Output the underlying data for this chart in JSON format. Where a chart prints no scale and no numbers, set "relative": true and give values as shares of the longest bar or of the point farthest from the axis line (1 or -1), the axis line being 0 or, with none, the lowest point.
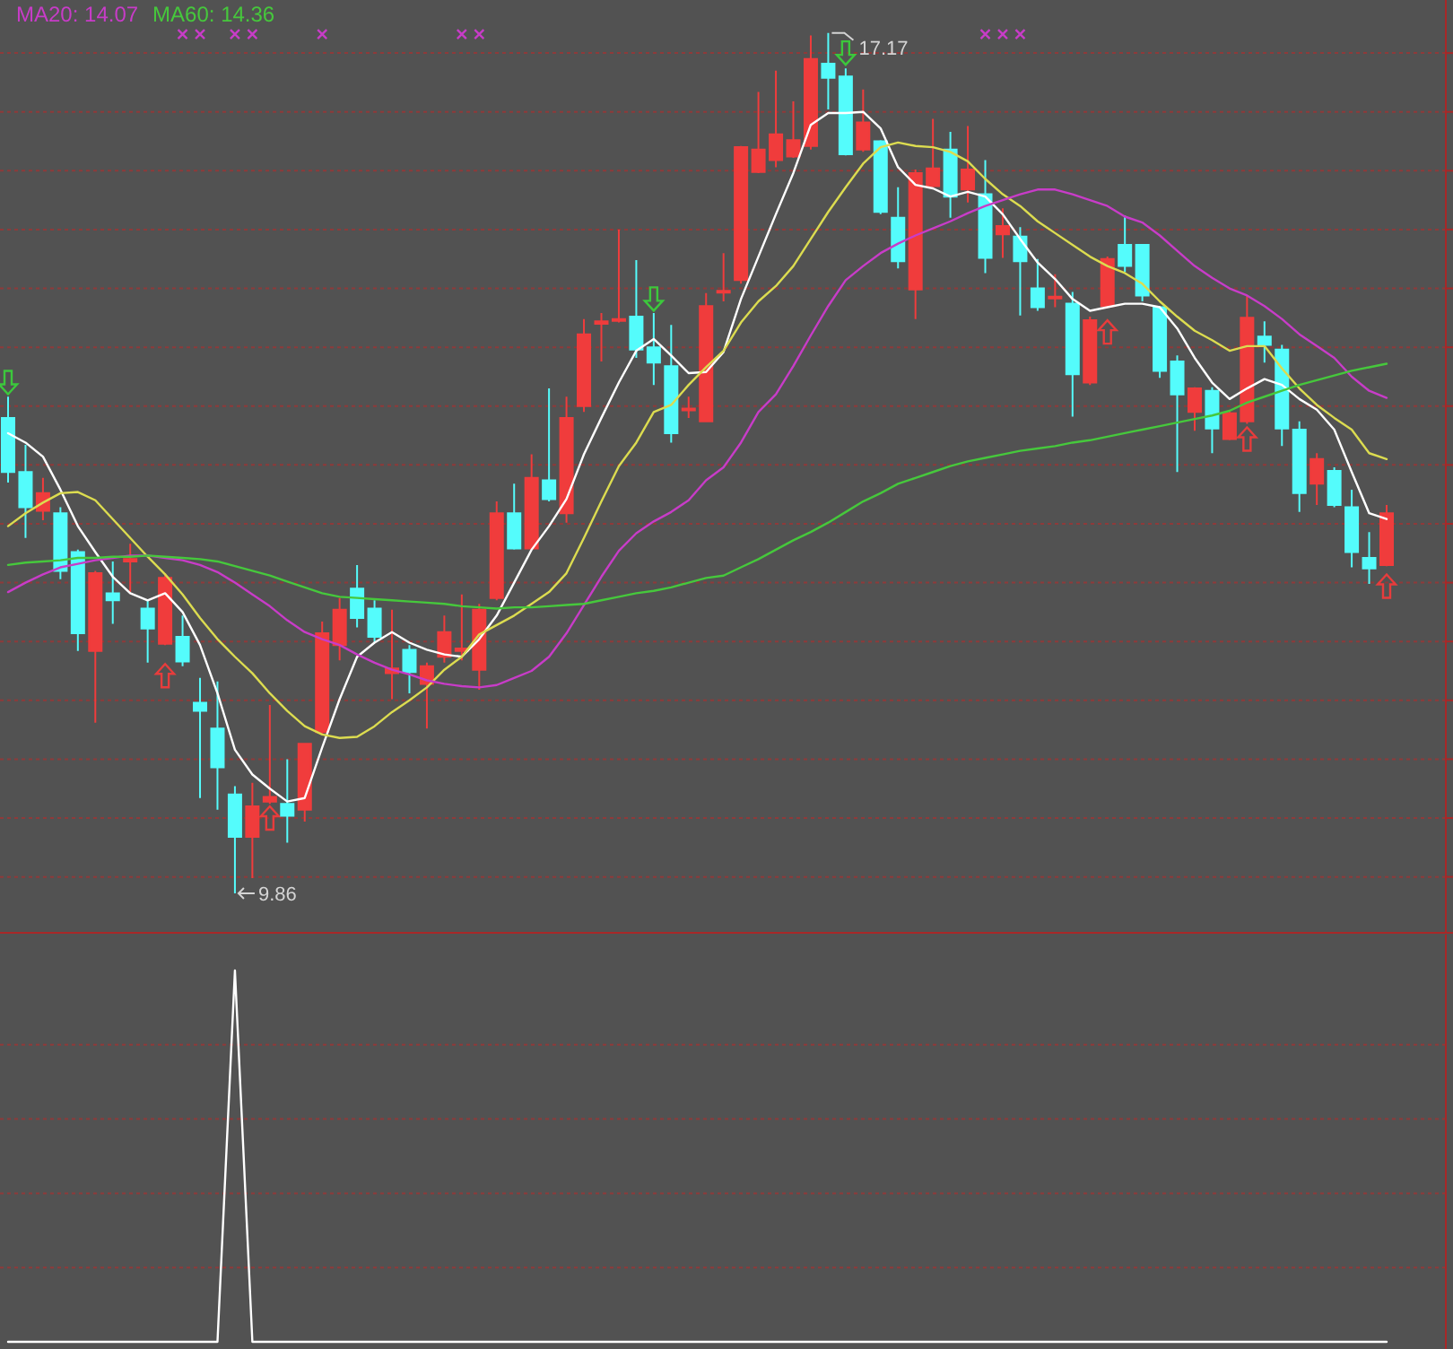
{
  "chart_data": [
    {
      "type": "candlestick",
      "categories": [
        null,
        null,
        null,
        null,
        null,
        null,
        null,
        null,
        null,
        null,
        null,
        null,
        null,
        null,
        null,
        null,
        null,
        null,
        null,
        null,
        null,
        null,
        null,
        null,
        null,
        null,
        null,
        null,
        null,
        null,
        null,
        null,
        null,
        null,
        null,
        null,
        null,
        null,
        null,
        null,
        null,
        null,
        null,
        null,
        null,
        null,
        null,
        null,
        null,
        null,
        null,
        null,
        null,
        null,
        null,
        null,
        null,
        null,
        null,
        null,
        null,
        null,
        null,
        null,
        null,
        null,
        null,
        null,
        null,
        null,
        null,
        null,
        null,
        null,
        null,
        null,
        null,
        null,
        null,
        null
      ],
      "ohlc": [
        [
          13.9,
          14.08,
          13.35,
          13.44
        ],
        [
          13.44,
          13.67,
          12.88,
          13.14
        ],
        [
          13.11,
          13.39,
          13.03,
          13.26
        ],
        [
          13.09,
          13.14,
          12.53,
          12.6
        ],
        [
          12.76,
          12.78,
          11.92,
          12.07
        ],
        [
          11.92,
          12.6,
          11.31,
          12.58
        ],
        [
          12.41,
          12.68,
          12.15,
          12.35
        ],
        [
          12.68,
          12.83,
          12.42,
          12.7
        ],
        [
          12.28,
          12.35,
          11.82,
          12.11
        ],
        [
          11.98,
          12.58,
          11.97,
          12.54
        ],
        [
          12.04,
          12.22,
          11.79,
          11.83
        ],
        [
          11.48,
          11.69,
          10.67,
          11.41
        ],
        [
          11.26,
          11.66,
          10.57,
          10.93
        ],
        [
          10.7,
          10.77,
          9.86,
          10.34
        ],
        [
          10.34,
          10.8,
          9.99,
          10.6
        ],
        [
          10.64,
          11.46,
          10.62,
          10.68
        ],
        [
          10.62,
          11.0,
          10.29,
          10.52
        ],
        [
          10.57,
          11.13,
          10.47,
          11.13
        ],
        [
          11.23,
          12.17,
          11.21,
          12.07
        ],
        [
          11.97,
          12.37,
          11.84,
          12.27
        ],
        [
          12.45,
          12.65,
          12.12,
          12.2
        ],
        [
          12.28,
          12.35,
          11.99,
          12.04
        ],
        [
          11.73,
          12.27,
          11.51,
          11.77
        ],
        [
          11.93,
          11.97,
          11.56,
          11.74
        ],
        [
          11.64,
          11.82,
          11.26,
          11.79
        ],
        [
          11.87,
          12.22,
          11.82,
          12.08
        ],
        [
          11.92,
          12.4,
          11.84,
          11.94
        ],
        [
          11.76,
          12.32,
          11.59,
          12.27
        ],
        [
          12.37,
          13.19,
          12.35,
          13.09
        ],
        [
          13.09,
          13.34,
          12.78,
          12.79
        ],
        [
          12.79,
          13.59,
          12.78,
          13.39
        ],
        [
          13.37,
          14.15,
          13.19,
          13.21
        ],
        [
          13.09,
          14.08,
          13.01,
          13.9
        ],
        [
          14.0,
          14.74,
          13.95,
          14.61
        ],
        [
          14.7,
          14.79,
          14.38,
          14.72
        ],
        [
          14.73,
          15.5,
          14.71,
          14.74
        ],
        [
          14.76,
          15.24,
          14.41,
          14.48
        ],
        [
          14.5,
          14.79,
          14.18,
          14.37
        ],
        [
          14.34,
          14.69,
          13.69,
          13.77
        ],
        [
          13.97,
          14.08,
          13.9,
          13.98
        ],
        [
          13.87,
          14.96,
          13.87,
          14.85
        ],
        [
          14.97,
          15.3,
          14.89,
          14.98
        ],
        [
          15.07,
          16.21,
          15.04,
          16.2
        ],
        [
          15.99,
          16.67,
          15.98,
          16.18
        ],
        [
          16.09,
          16.85,
          16.03,
          16.31
        ],
        [
          16.12,
          16.59,
          16.11,
          16.26
        ],
        [
          16.21,
          17.15,
          16.18,
          16.95
        ],
        [
          16.91,
          17.17,
          16.52,
          16.79
        ],
        [
          16.8,
          16.87,
          16.13,
          16.14
        ],
        [
          16.18,
          16.69,
          16.16,
          16.41
        ],
        [
          16.25,
          16.26,
          15.63,
          15.65
        ],
        [
          15.6,
          15.86,
          15.17,
          15.23
        ],
        [
          14.99,
          16.01,
          14.74,
          15.98
        ],
        [
          15.87,
          16.44,
          15.86,
          16.02
        ],
        [
          16.18,
          16.33,
          15.6,
          15.78
        ],
        [
          15.84,
          16.38,
          15.73,
          16.01
        ],
        [
          15.8,
          16.09,
          15.13,
          15.26
        ],
        [
          15.46,
          15.68,
          15.26,
          15.53
        ],
        [
          15.44,
          15.52,
          14.77,
          15.23
        ],
        [
          15.0,
          15.25,
          14.81,
          14.84
        ],
        [
          14.92,
          15.12,
          14.84,
          14.93
        ],
        [
          14.87,
          14.97,
          13.91,
          14.27
        ],
        [
          14.2,
          14.76,
          14.18,
          14.73
        ],
        [
          14.85,
          15.27,
          14.84,
          15.25
        ],
        [
          15.37,
          15.62,
          15.14,
          15.19
        ],
        [
          15.37,
          15.37,
          14.89,
          14.94
        ],
        [
          14.84,
          14.85,
          14.24,
          14.3
        ],
        [
          14.38,
          14.43,
          13.44,
          14.1
        ],
        [
          13.95,
          14.16,
          13.79,
          14.15
        ],
        [
          14.13,
          14.16,
          13.6,
          13.81
        ],
        [
          13.72,
          13.96,
          13.71,
          13.94
        ],
        [
          13.87,
          14.94,
          13.85,
          14.75
        ],
        [
          14.59,
          14.72,
          14.37,
          14.52
        ],
        [
          14.48,
          14.52,
          13.66,
          13.81
        ],
        [
          13.8,
          13.87,
          13.1,
          13.26
        ],
        [
          13.34,
          13.6,
          13.16,
          13.55
        ],
        [
          13.45,
          13.48,
          13.14,
          13.16
        ],
        [
          13.14,
          13.29,
          12.63,
          12.76
        ],
        [
          12.71,
          12.93,
          12.49,
          12.62
        ],
        [
          12.65,
          13.16,
          12.64,
          13.09
        ]
      ],
      "colors": [
        "#54fcfc",
        "#54fcfc",
        "#f03c3c",
        "#54fcfc",
        "#54fcfc",
        "#f03c3c",
        "#54fcfc",
        "#f03c3c",
        "#54fcfc",
        "#f03c3c",
        "#54fcfc",
        "#54fcfc",
        "#54fcfc",
        "#54fcfc",
        "#f03c3c",
        "#f03c3c",
        "#54fcfc",
        "#f03c3c",
        "#f03c3c",
        "#f03c3c",
        "#54fcfc",
        "#54fcfc",
        "#f03c3c",
        "#54fcfc",
        "#f03c3c",
        "#f03c3c",
        "#f03c3c",
        "#f03c3c",
        "#f03c3c",
        "#54fcfc",
        "#f03c3c",
        "#54fcfc",
        "#f03c3c",
        "#f03c3c",
        "#f03c3c",
        "#f03c3c",
        "#54fcfc",
        "#54fcfc",
        "#54fcfc",
        "#f03c3c",
        "#f03c3c",
        "#f03c3c",
        "#f03c3c",
        "#f03c3c",
        "#f03c3c",
        "#f03c3c",
        "#f03c3c",
        "#54fcfc",
        "#54fcfc",
        "#f03c3c",
        "#54fcfc",
        "#54fcfc",
        "#f03c3c",
        "#f03c3c",
        "#54fcfc",
        "#f03c3c",
        "#54fcfc",
        "#f03c3c",
        "#54fcfc",
        "#54fcfc",
        "#f03c3c",
        "#54fcfc",
        "#f03c3c",
        "#f03c3c",
        "#54fcfc",
        "#54fcfc",
        "#54fcfc",
        "#54fcfc",
        "#f03c3c",
        "#54fcfc",
        "#f03c3c",
        "#f03c3c",
        "#54fcfc",
        "#54fcfc",
        "#54fcfc",
        "#f03c3c",
        "#54fcfc",
        "#54fcfc",
        "#54fcfc",
        "#f03c3c"
      ],
      "series": [
        {
          "type": "line",
          "color": "#ffffff",
          "values": [
            13.77,
            13.69,
            13.57,
            13.29,
            12.98,
            12.76,
            12.55,
            12.41,
            12.35,
            12.41,
            12.25,
            11.97,
            11.56,
            11.08,
            10.87,
            10.75,
            10.64,
            10.67,
            11.1,
            11.51,
            11.87,
            11.99,
            12.08,
            11.99,
            11.93,
            11.89,
            11.87,
            12.02,
            12.22,
            12.5,
            12.78,
            12.98,
            13.21,
            13.59,
            13.9,
            14.2,
            14.47,
            14.57,
            14.43,
            14.28,
            14.29,
            14.46,
            14.91,
            15.27,
            15.63,
            15.98,
            16.39,
            16.49,
            16.49,
            16.5,
            16.36,
            16.03,
            15.88,
            15.85,
            15.78,
            15.82,
            15.78,
            15.63,
            15.42,
            15.22,
            15.08,
            14.91,
            14.81,
            14.84,
            14.87,
            14.87,
            14.84,
            14.66,
            14.41,
            14.2,
            14.06,
            14.15,
            14.23,
            14.18,
            14.06,
            13.97,
            13.8,
            13.44,
            13.09,
            13.04
          ]
        },
        {
          "type": "line",
          "color": "#dcdc50",
          "values": [
            12.98,
            13.09,
            13.18,
            13.26,
            13.27,
            13.2,
            13.04,
            12.88,
            12.72,
            12.57,
            12.4,
            12.2,
            12.02,
            11.87,
            11.73,
            11.56,
            11.41,
            11.28,
            11.21,
            11.18,
            11.19,
            11.28,
            11.4,
            11.5,
            11.61,
            11.76,
            11.87,
            12.06,
            12.14,
            12.22,
            12.32,
            12.42,
            12.58,
            12.88,
            13.19,
            13.49,
            13.69,
            13.95,
            14.01,
            14.18,
            14.33,
            14.47,
            14.71,
            14.89,
            15.02,
            15.19,
            15.42,
            15.65,
            15.86,
            16.06,
            16.2,
            16.24,
            16.21,
            16.2,
            16.16,
            16.08,
            15.93,
            15.8,
            15.7,
            15.57,
            15.47,
            15.37,
            15.27,
            15.19,
            15.13,
            15.04,
            14.89,
            14.76,
            14.64,
            14.56,
            14.47,
            14.51,
            14.51,
            14.32,
            14.15,
            14.01,
            13.9,
            13.8,
            13.6,
            13.55
          ]
        },
        {
          "type": "line",
          "name": "MA20: 14.07",
          "color": "#c83cc8",
          "values": [
            12.42,
            12.5,
            12.57,
            12.63,
            12.66,
            12.69,
            12.71,
            12.73,
            12.73,
            12.71,
            12.69,
            12.65,
            12.59,
            12.5,
            12.4,
            12.3,
            12.18,
            12.08,
            12.02,
            11.97,
            11.89,
            11.82,
            11.76,
            11.72,
            11.67,
            11.64,
            11.62,
            11.61,
            11.63,
            11.69,
            11.75,
            11.87,
            12.07,
            12.31,
            12.55,
            12.77,
            12.92,
            13.02,
            13.1,
            13.2,
            13.37,
            13.48,
            13.69,
            13.95,
            14.1,
            14.34,
            14.6,
            14.85,
            15.07,
            15.19,
            15.3,
            15.38,
            15.45,
            15.51,
            15.57,
            15.64,
            15.7,
            15.75,
            15.8,
            15.84,
            15.84,
            15.8,
            15.75,
            15.7,
            15.61,
            15.56,
            15.45,
            15.32,
            15.19,
            15.09,
            15.0,
            14.94,
            14.85,
            14.74,
            14.61,
            14.51,
            14.41,
            14.25,
            14.13,
            14.07
          ]
        },
        {
          "type": "line",
          "name": "MA60: 14.36",
          "color": "#46c83c",
          "values": [
            12.65,
            12.67,
            12.68,
            12.69,
            12.71,
            12.71,
            12.72,
            12.72,
            12.73,
            12.72,
            12.71,
            12.7,
            12.68,
            12.64,
            12.6,
            12.56,
            12.51,
            12.46,
            12.41,
            12.38,
            12.37,
            12.36,
            12.35,
            12.34,
            12.33,
            12.32,
            12.3,
            12.29,
            12.28,
            12.29,
            12.29,
            12.3,
            12.31,
            12.32,
            12.35,
            12.38,
            12.41,
            12.43,
            12.46,
            12.5,
            12.54,
            12.56,
            12.63,
            12.7,
            12.78,
            12.86,
            12.93,
            13.01,
            13.1,
            13.19,
            13.26,
            13.34,
            13.39,
            13.44,
            13.49,
            13.53,
            13.56,
            13.59,
            13.62,
            13.64,
            13.66,
            13.69,
            13.71,
            13.74,
            13.77,
            13.8,
            13.83,
            13.86,
            13.89,
            13.92,
            13.96,
            14.03,
            14.08,
            14.13,
            14.18,
            14.22,
            14.26,
            14.3,
            14.33,
            14.36
          ]
        },
        {
          "type": "scatter",
          "marker": "cross",
          "color": "#c83cc8",
          "values": [
            null,
            null,
            null,
            null,
            null,
            null,
            null,
            null,
            null,
            null,
            17.16,
            17.16,
            null,
            17.16,
            17.16,
            null,
            null,
            null,
            17.16,
            null,
            null,
            null,
            null,
            null,
            null,
            null,
            17.16,
            17.16,
            null,
            null,
            null,
            null,
            null,
            null,
            null,
            null,
            null,
            null,
            null,
            null,
            null,
            null,
            null,
            null,
            null,
            null,
            null,
            null,
            null,
            null,
            null,
            null,
            null,
            null,
            null,
            null,
            17.16,
            17.16,
            17.16,
            null,
            null,
            null,
            null,
            null,
            null,
            null,
            null,
            null,
            null,
            null,
            null,
            null,
            null,
            null,
            null,
            null,
            null,
            null,
            null,
            null
          ]
        },
        {
          "type": "scatter",
          "marker": "triangle",
          "color": "#e83c3c",
          "values": [
            null,
            null,
            null,
            null,
            null,
            null,
            null,
            null,
            null,
            11.71,
            null,
            null,
            null,
            null,
            null,
            10.5,
            null,
            null,
            null,
            null,
            null,
            null,
            null,
            null,
            null,
            null,
            null,
            null,
            null,
            null,
            null,
            null,
            null,
            null,
            null,
            null,
            null,
            null,
            null,
            null,
            null,
            null,
            null,
            null,
            null,
            null,
            null,
            null,
            null,
            null,
            null,
            null,
            null,
            null,
            null,
            null,
            null,
            null,
            null,
            null,
            null,
            null,
            null,
            14.63,
            null,
            null,
            null,
            null,
            null,
            null,
            null,
            13.72,
            null,
            null,
            null,
            null,
            null,
            null,
            null,
            12.47
          ]
        },
        {
          "type": "scatter",
          "marker": "triangle",
          "color": "#3cc83c",
          "values": [
            14.2,
            null,
            null,
            null,
            null,
            null,
            null,
            null,
            null,
            null,
            null,
            null,
            null,
            null,
            null,
            null,
            null,
            null,
            null,
            null,
            null,
            null,
            null,
            null,
            null,
            null,
            null,
            null,
            null,
            null,
            null,
            null,
            null,
            null,
            null,
            null,
            null,
            14.91,
            null,
            null,
            null,
            null,
            null,
            null,
            null,
            null,
            null,
            null,
            17.0,
            null,
            null,
            null,
            null,
            null,
            null,
            null,
            null,
            null,
            null,
            null,
            null,
            null,
            null,
            null,
            null,
            null,
            null,
            null,
            null,
            null,
            null,
            null,
            null,
            null,
            null,
            null,
            null,
            null,
            null,
            null
          ]
        }
      ],
      "yticks": [
        {
          "value": 10,
          "label": null
        },
        {
          "value": 10.5,
          "label": null
        },
        {
          "value": 11,
          "label": null
        },
        {
          "value": 11.5,
          "label": null
        },
        {
          "value": 12,
          "label": null
        },
        {
          "value": 12.5,
          "label": null
        },
        {
          "value": 13,
          "label": null
        },
        {
          "value": 13.5,
          "label": null
        },
        {
          "value": 14,
          "label": null
        },
        {
          "value": 14.5,
          "label": null
        },
        {
          "value": 15,
          "label": null
        },
        {
          "value": 15.5,
          "label": null
        },
        {
          "value": 16,
          "label": null
        },
        {
          "value": 16.5,
          "label": null
        },
        {
          "value": 17,
          "label": null
        }
      ],
      "grid": "y",
      "legend": "top left",
      "annotations": [
        "17.17",
        "9.86"
      ]
    },
    {
      "type": "line",
      "relative": true,
      "categories": [
        null,
        null,
        null,
        null,
        null,
        null,
        null,
        null,
        null,
        null,
        null,
        null,
        null,
        null,
        null,
        null,
        null,
        null,
        null,
        null,
        null,
        null,
        null,
        null,
        null,
        null,
        null,
        null,
        null,
        null,
        null,
        null,
        null,
        null,
        null,
        null,
        null,
        null,
        null,
        null,
        null,
        null,
        null,
        null,
        null,
        null,
        null,
        null,
        null,
        null,
        null,
        null,
        null,
        null,
        null,
        null,
        null,
        null,
        null,
        null,
        null,
        null,
        null,
        null,
        null,
        null,
        null,
        null,
        null,
        null,
        null,
        null,
        null,
        null,
        null,
        null,
        null,
        null,
        null,
        null
      ],
      "values": [
        0,
        0,
        0,
        0,
        0,
        0,
        0,
        0,
        0,
        0,
        0,
        0,
        0,
        1,
        0,
        0,
        0,
        0,
        0,
        0,
        0,
        0,
        0,
        0,
        0,
        0,
        0,
        0,
        0,
        0,
        0,
        0,
        0,
        0,
        0,
        0,
        0,
        0,
        0,
        0,
        0,
        0,
        0,
        0,
        0,
        0,
        0,
        0,
        0,
        0,
        0,
        0,
        0,
        0,
        0,
        0,
        0,
        0,
        0,
        0,
        0,
        0,
        0,
        0,
        0,
        0,
        0,
        0,
        0,
        0,
        0,
        0,
        0,
        0,
        0,
        0,
        0,
        0,
        0,
        0
      ],
      "color": "#ffffff",
      "ref_lines": [
        {
          "axis": "y",
          "value": 0.2,
          "color": "#8e3a3a",
          "line_style": "dotted"
        },
        {
          "axis": "y",
          "value": 0.4,
          "color": "#8e3a3a",
          "line_style": "dotted"
        },
        {
          "axis": "y",
          "value": 0.6,
          "color": "#8e3a3a",
          "line_style": "dotted"
        },
        {
          "axis": "y",
          "value": 0.8,
          "color": "#8e3a3a",
          "line_style": "dotted"
        }
      ]
    }
  ]
}
